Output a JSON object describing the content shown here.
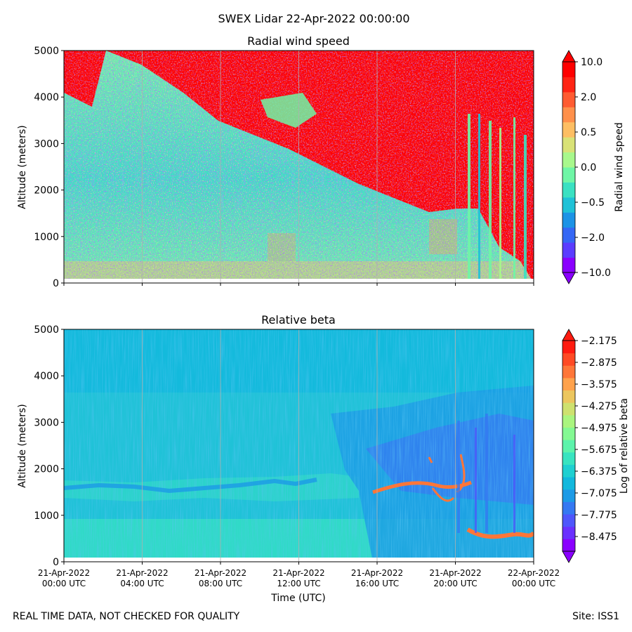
{
  "suptitle": "SWEX Lidar 22-Apr-2022 00:00:00",
  "footer_left": "REAL TIME DATA, NOT CHECKED FOR QUALITY",
  "footer_right": "Site: ISS1",
  "xlabel": "Time (UTC)",
  "x_ticks": [
    {
      "date": "21-Apr-2022",
      "time": "00:00 UTC"
    },
    {
      "date": "21-Apr-2022",
      "time": "04:00 UTC"
    },
    {
      "date": "21-Apr-2022",
      "time": "08:00 UTC"
    },
    {
      "date": "21-Apr-2022",
      "time": "12:00 UTC"
    },
    {
      "date": "21-Apr-2022",
      "time": "16:00 UTC"
    },
    {
      "date": "21-Apr-2022",
      "time": "20:00 UTC"
    },
    {
      "date": "22-Apr-2022",
      "time": "00:00 UTC"
    }
  ],
  "chart_data": [
    {
      "type": "heatmap",
      "title": "Radial wind speed",
      "xlabel": "",
      "ylabel": "Altitude (meters)",
      "x_range": [
        "21-Apr-2022 00:00 UTC",
        "22-Apr-2022 00:00 UTC"
      ],
      "ylim": [
        0,
        5000
      ],
      "y_ticks": [
        0,
        1000,
        2000,
        3000,
        4000,
        5000
      ],
      "grid": "vertical",
      "colorbar": {
        "label": "Radial wind speed",
        "tick_labels": [
          "10.0",
          "2.0",
          "0.5",
          "0.0",
          "−0.5",
          "−2.0",
          "−10.0"
        ],
        "colors": [
          "#8a00ff",
          "#5b3cff",
          "#3567f5",
          "#1c93e6",
          "#1fc2d7",
          "#3ae1c2",
          "#6ff6a6",
          "#a8f88c",
          "#d9e277",
          "#fdbe63",
          "#ff904b",
          "#ff5b31",
          "#ff2414",
          "#ff0000"
        ],
        "extend": "both"
      }
    },
    {
      "type": "heatmap",
      "title": "Relative beta",
      "xlabel": "Time (UTC)",
      "ylabel": "Altitude (meters)",
      "x_range": [
        "21-Apr-2022 00:00 UTC",
        "22-Apr-2022 00:00 UTC"
      ],
      "ylim": [
        0,
        5000
      ],
      "y_ticks": [
        0,
        1000,
        2000,
        3000,
        4000,
        5000
      ],
      "grid": "vertical",
      "colorbar": {
        "label": "Log of relative beta",
        "tick_labels": [
          "−2.175",
          "−2.875",
          "−3.575",
          "−4.275",
          "−4.975",
          "−5.675",
          "−6.375",
          "−7.075",
          "−7.775",
          "−8.475"
        ],
        "colors": [
          "#8a00ff",
          "#6a30ff",
          "#4f56fb",
          "#3578f2",
          "#1c9ae6",
          "#12b8dd",
          "#1fd0d1",
          "#38e4c0",
          "#5cf3ab",
          "#84f993",
          "#aaf57f",
          "#cee16f",
          "#ecc65e",
          "#ffa24c",
          "#ff7638",
          "#ff4a24",
          "#ff1b10"
        ],
        "extend": "both"
      }
    }
  ]
}
